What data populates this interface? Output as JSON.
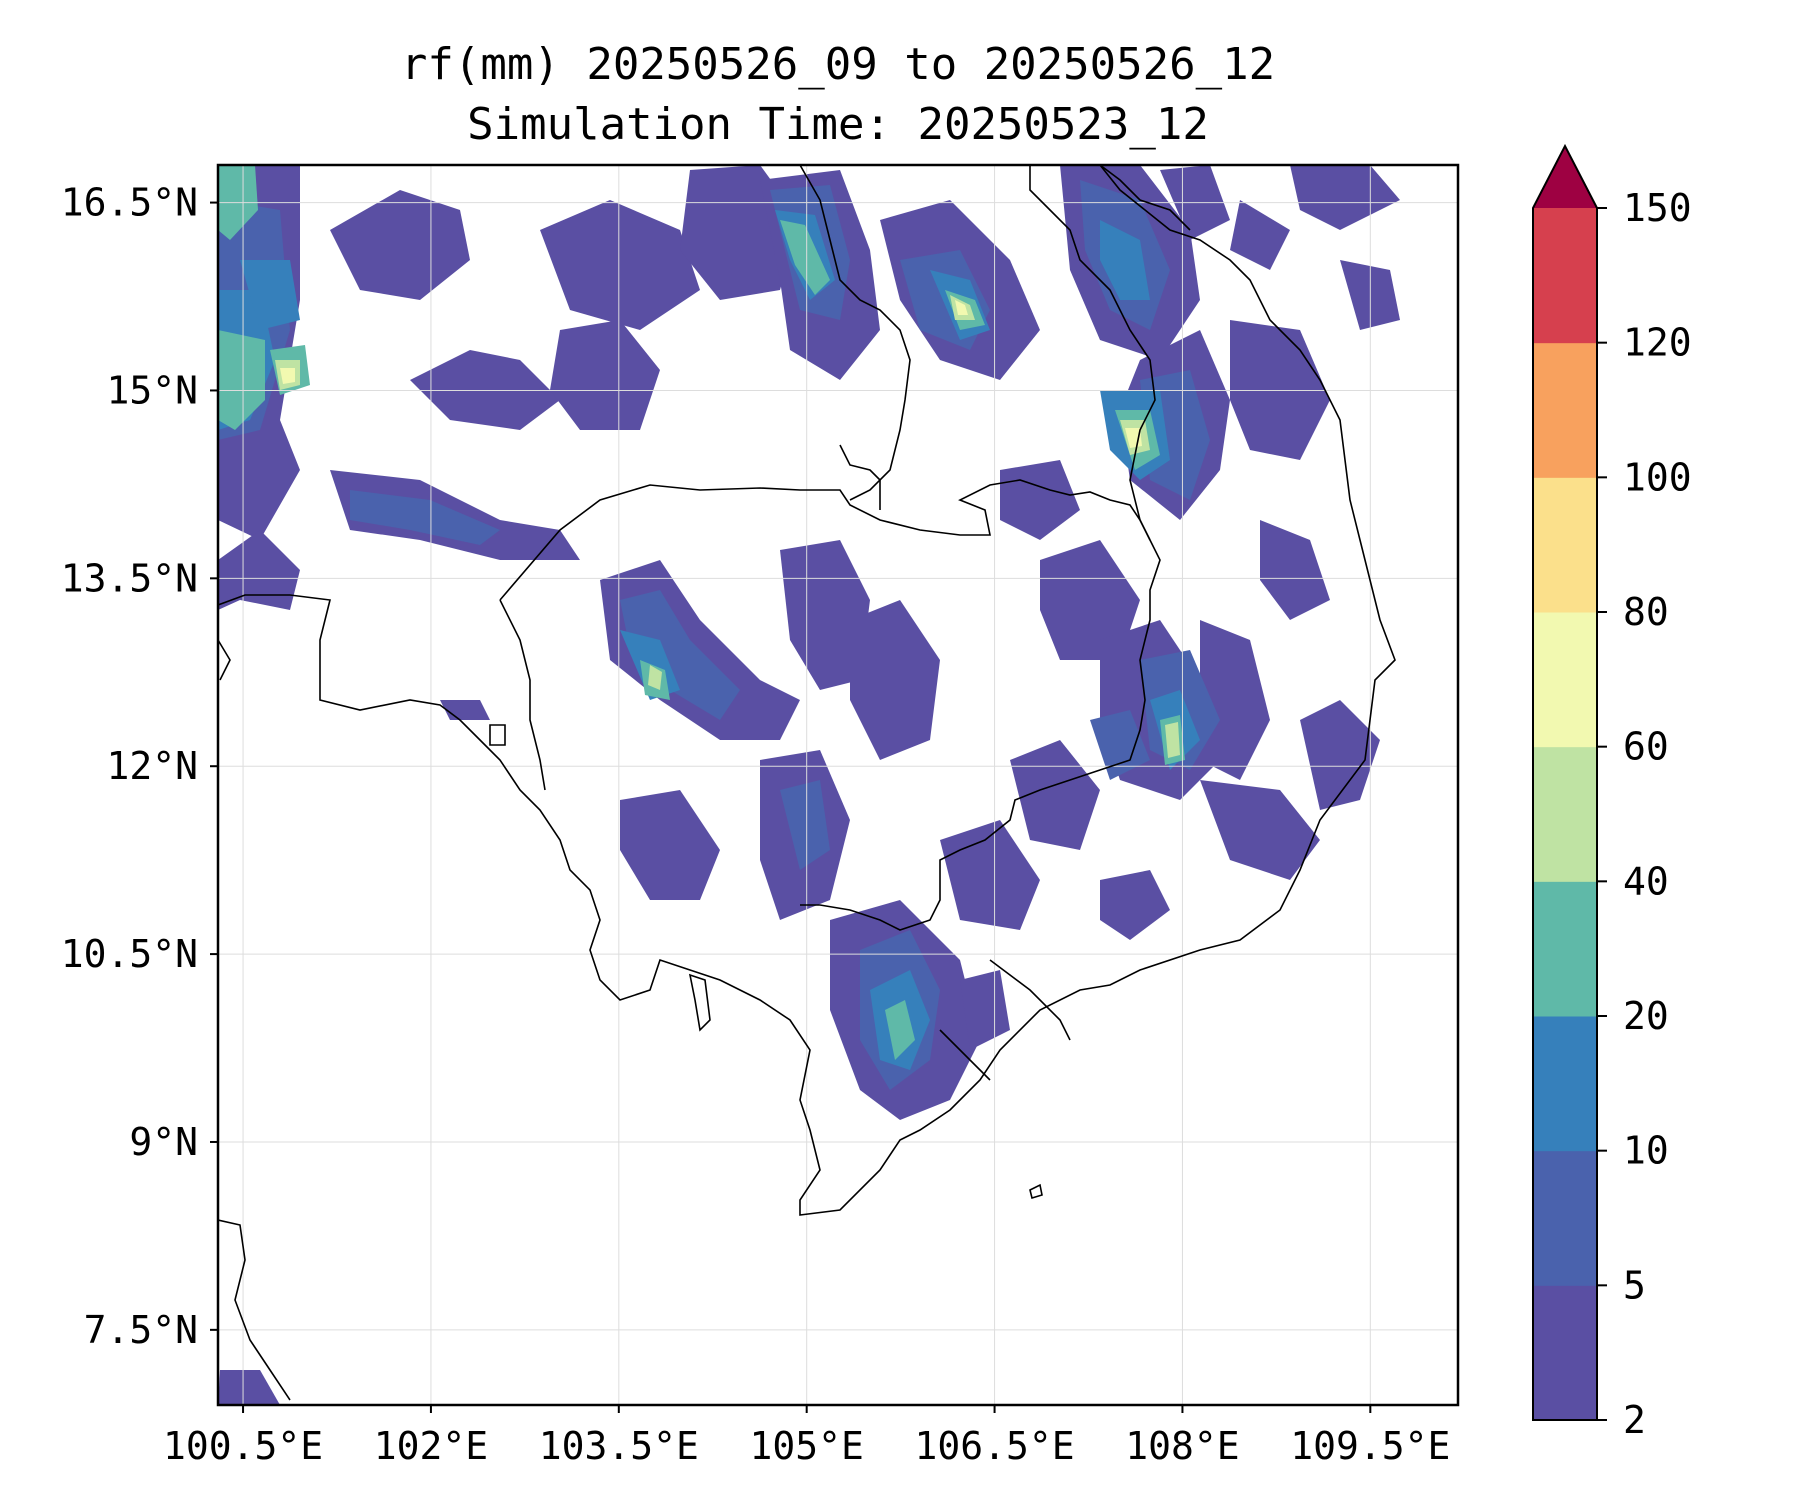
{
  "title_line1": "rf(mm) 20250526_09 to 20250526_12",
  "title_line2": "Simulation Time: 20250523_12",
  "map": {
    "lon_range": [
      100.3,
      110.2
    ],
    "lat_range": [
      6.9,
      16.8
    ],
    "x_ticks": [
      "100.5°E",
      "102°E",
      "103.5°E",
      "105°E",
      "106.5°E",
      "108°E",
      "109.5°E"
    ],
    "y_ticks": [
      "16.5°N",
      "15°N",
      "13.5°N",
      "12°N",
      "10.5°N",
      "9°N",
      "7.5°N"
    ],
    "gridlines": true
  },
  "colorbar": {
    "levels": [
      "2",
      "5",
      "10",
      "20",
      "40",
      "60",
      "80",
      "100",
      "120",
      "150"
    ],
    "colors": [
      "#5a4fa3",
      "#4a62ad",
      "#3680bb",
      "#5fb9a8",
      "#bfe3a3",
      "#f2f9b0",
      "#fbe08b",
      "#f8a15e",
      "#d6404e"
    ],
    "extend_color": "#9e0142",
    "extend": "max"
  }
}
